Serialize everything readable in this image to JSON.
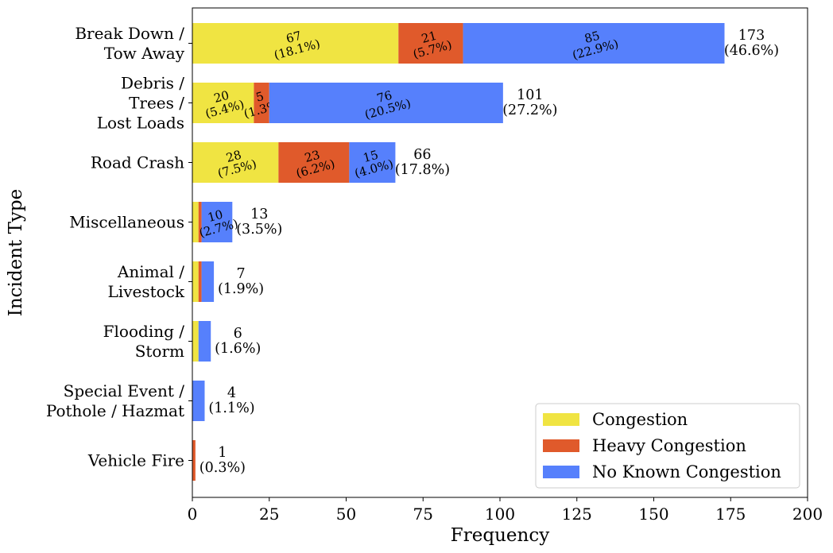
{
  "chart_data": {
    "type": "bar",
    "orientation": "horizontal",
    "stacked": true,
    "xlabel": "Frequency",
    "ylabel": "Incident Type",
    "xlim": [
      0,
      200
    ],
    "xticks": [
      "0",
      "25",
      "50",
      "75",
      "100",
      "125",
      "150",
      "175",
      "200"
    ],
    "grid": false,
    "legend_position": "bottom-right",
    "categories": [
      [
        "Break Down /",
        "Tow Away"
      ],
      [
        "Debris /",
        "Trees /",
        "Lost Loads"
      ],
      [
        "Road Crash"
      ],
      [
        "Miscellaneous"
      ],
      [
        "Animal /",
        "Livestock"
      ],
      [
        "Flooding /",
        "Storm"
      ],
      [
        "Special Event /",
        "Pothole / Hazmat"
      ],
      [
        "Vehicle Fire"
      ]
    ],
    "series": [
      {
        "name": "Congestion",
        "color": "#f0e442",
        "values": [
          67,
          20,
          28,
          2,
          2,
          2,
          0,
          0
        ]
      },
      {
        "name": "Heavy Congestion",
        "color": "#e05a2b",
        "values": [
          21,
          5,
          23,
          1,
          1,
          0,
          0,
          1
        ]
      },
      {
        "name": "No Known Congestion",
        "color": "#5680fc",
        "values": [
          85,
          76,
          15,
          10,
          4,
          4,
          4,
          0
        ]
      }
    ],
    "segment_labels": [
      [
        [
          "67",
          "(18.1%)"
        ],
        [
          "21",
          "(5.7%)"
        ],
        [
          "85",
          "(22.9%)"
        ]
      ],
      [
        [
          "20",
          "(5.4%)"
        ],
        [
          "5",
          "(1.3%)"
        ],
        [
          "76",
          "(20.5%)"
        ]
      ],
      [
        [
          "28",
          "(7.5%)"
        ],
        [
          "23",
          "(6.2%)"
        ],
        [
          "15",
          "(4.0%)"
        ]
      ],
      [
        null,
        null,
        [
          "10",
          "(2.7%)"
        ]
      ],
      [
        null,
        null,
        null
      ],
      [
        null,
        null,
        null
      ],
      [
        null,
        null,
        null
      ],
      [
        null,
        null,
        null
      ]
    ],
    "totals": [
      [
        "173",
        "(46.6%)"
      ],
      [
        "101",
        "(27.2%)"
      ],
      [
        "66",
        "(17.8%)"
      ],
      [
        "13",
        "(3.5%)"
      ],
      [
        "7",
        "(1.9%)"
      ],
      [
        "6",
        "(1.6%)"
      ],
      [
        "4",
        "(1.1%)"
      ],
      [
        "1",
        "(0.3%)"
      ]
    ]
  }
}
